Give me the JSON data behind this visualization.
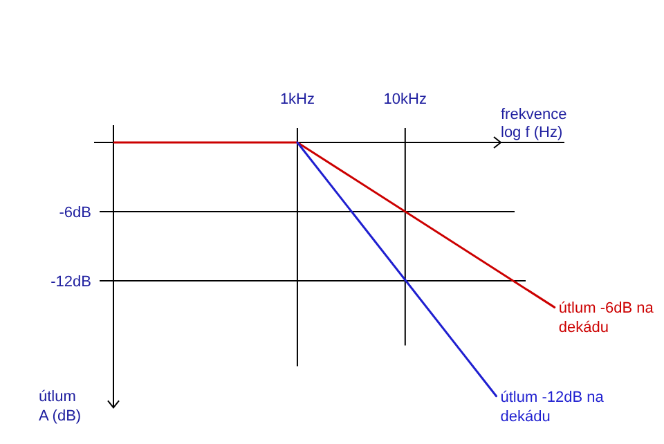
{
  "chart_data": {
    "type": "line",
    "xlabel": "frekvence log f (Hz)",
    "ylabel": "útlum A (dB)",
    "log": "x",
    "grid": true,
    "xlim": [
      0.013,
      300
    ],
    "ylim": [
      -23,
      1.5
    ],
    "xticks": [
      {
        "value": 1,
        "label": "1kHz"
      },
      {
        "value": 10,
        "label": "10kHz"
      }
    ],
    "yticks": [
      {
        "value": -6,
        "label": "-6dB"
      },
      {
        "value": -12,
        "label": "-12dB"
      }
    ],
    "series": [
      {
        "name": "útlum -6dB na dekádu",
        "color": "#cc0000",
        "x": [
          0.02,
          1,
          243
        ],
        "values": [
          0,
          0,
          -14.3
        ]
      },
      {
        "name": "útlum -12dB na dekádu",
        "color": "#1f1fd0",
        "x": [
          1,
          70
        ],
        "values": [
          0,
          -22
        ]
      }
    ]
  }
}
